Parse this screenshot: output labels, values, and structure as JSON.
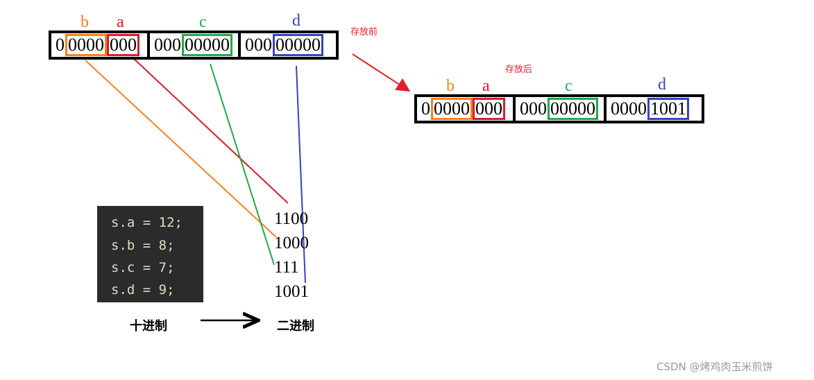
{
  "before": {
    "note": "存放前",
    "labels": {
      "b": "b",
      "a": "a",
      "c": "c",
      "d": "d"
    },
    "bytes": [
      [
        "0",
        "0000",
        "000"
      ],
      [
        "000",
        "00000"
      ],
      [
        "000",
        "00000"
      ]
    ]
  },
  "after": {
    "note": "存放后",
    "labels": {
      "b": "b",
      "a": "a",
      "c": "c",
      "d": "d"
    },
    "bytes": [
      [
        "0",
        "0000",
        "000"
      ],
      [
        "000",
        "00000"
      ],
      [
        "0000",
        "1001"
      ]
    ]
  },
  "code": [
    "s.a = 12;",
    "s.b = 8;",
    "s.c = 7;",
    "s.d = 9;"
  ],
  "binary": [
    "1100",
    "1000",
    "111",
    "1001"
  ],
  "decimal_label": "十进制",
  "binary_label": "二进制",
  "watermark": "CSDN @烤鸡肉玉米煎饼"
}
